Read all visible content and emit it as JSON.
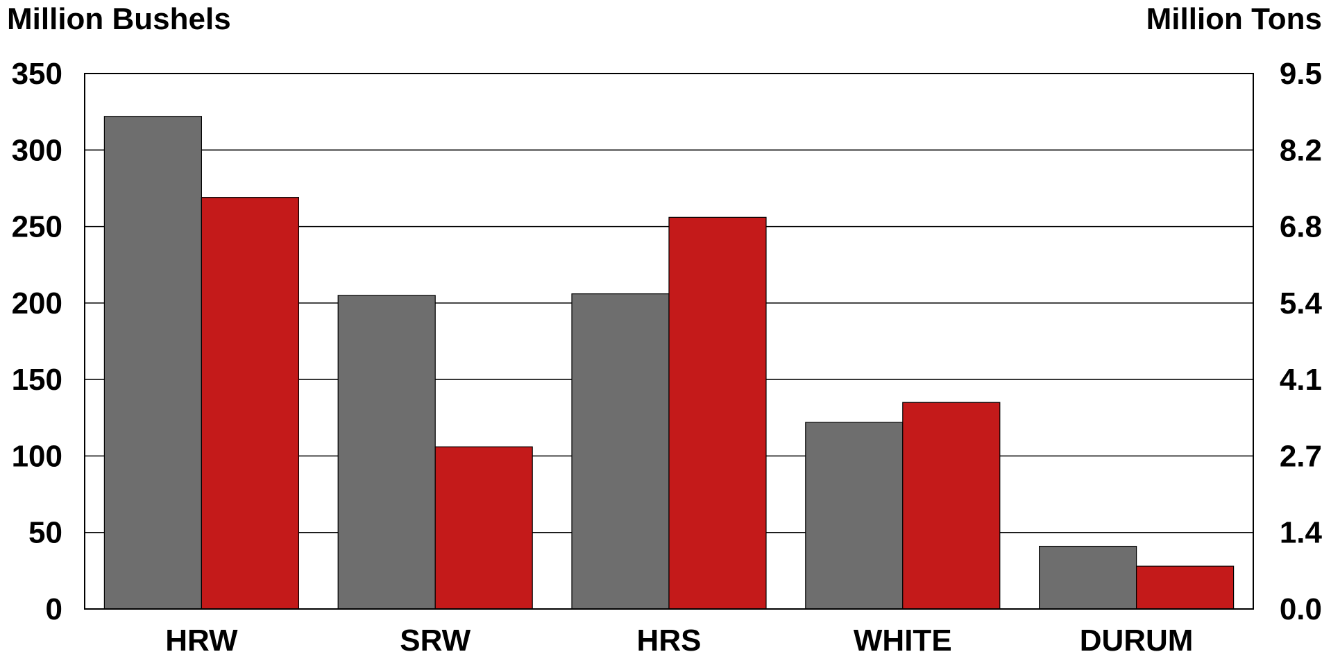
{
  "chart_data": {
    "type": "bar",
    "categories": [
      "HRW",
      "SRW",
      "HRS",
      "WHITE",
      "DURUM"
    ],
    "series": [
      {
        "values": [
          322,
          205,
          206,
          122,
          41
        ],
        "color": "#6e6e6e"
      },
      {
        "values": [
          269,
          106,
          256,
          135,
          28
        ],
        "color": "#c41a1a"
      }
    ],
    "ylabel": "Million Bushels",
    "ylabel_right": "Million Tons",
    "ylim": [
      0,
      350
    ],
    "yticks": [
      "0",
      "50",
      "100",
      "150",
      "200",
      "250",
      "300",
      "350"
    ],
    "yticks_right": [
      "0.0",
      "1.4",
      "2.7",
      "4.1",
      "5.4",
      "6.8",
      "8.2",
      "9.5"
    ],
    "grid": true,
    "legend": "none"
  }
}
